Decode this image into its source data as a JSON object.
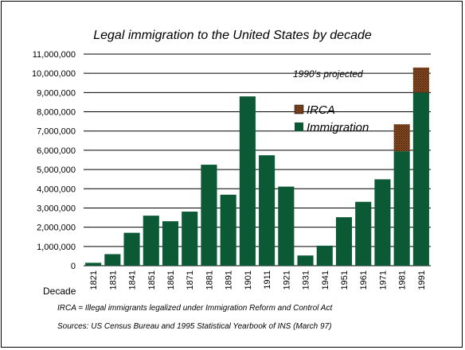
{
  "chart_data": {
    "type": "bar",
    "title": "Legal immigration to the United States by decade",
    "xlabel": "Decade",
    "ylabel": "",
    "ylim": [
      0,
      11000000
    ],
    "yticks": [
      0,
      1000000,
      2000000,
      3000000,
      4000000,
      5000000,
      6000000,
      7000000,
      8000000,
      9000000,
      10000000,
      11000000
    ],
    "ytick_labels": [
      "0",
      "1,000,000",
      "2,000,000",
      "3,000,000",
      "4,000,000",
      "5,000,000",
      "6,000,000",
      "7,000,000",
      "8,000,000",
      "9,000,000",
      "10,000,000",
      "11,000,000"
    ],
    "categories": [
      "1821",
      "1831",
      "1841",
      "1851",
      "1861",
      "1871",
      "1881",
      "1891",
      "1901",
      "1911",
      "1921",
      "1931",
      "1941",
      "1951",
      "1961",
      "1971",
      "1981",
      "1991"
    ],
    "stacked": true,
    "series": [
      {
        "name": "Immigration",
        "color": "#0b5a35",
        "values": [
          150000,
          600000,
          1710000,
          2600000,
          2310000,
          2810000,
          5250000,
          3690000,
          8800000,
          5740000,
          4110000,
          530000,
          1040000,
          2520000,
          3320000,
          4490000,
          5950000,
          9000000
        ]
      },
      {
        "name": "IRCA",
        "color": "#8b4a1e",
        "pattern": "dotted",
        "values": [
          0,
          0,
          0,
          0,
          0,
          0,
          0,
          0,
          0,
          0,
          0,
          0,
          0,
          0,
          0,
          0,
          1400000,
          1300000
        ]
      }
    ],
    "grid": "horizontal",
    "legend": "center-right",
    "annotations": [
      "1990's projected"
    ],
    "notes": [
      "IRCA = Illegal immigrants legalized under Immigration Reform and Control Act",
      "Sources:  US Census Bureau and 1995 Statistical Yearbook of INS (March 97)"
    ]
  }
}
